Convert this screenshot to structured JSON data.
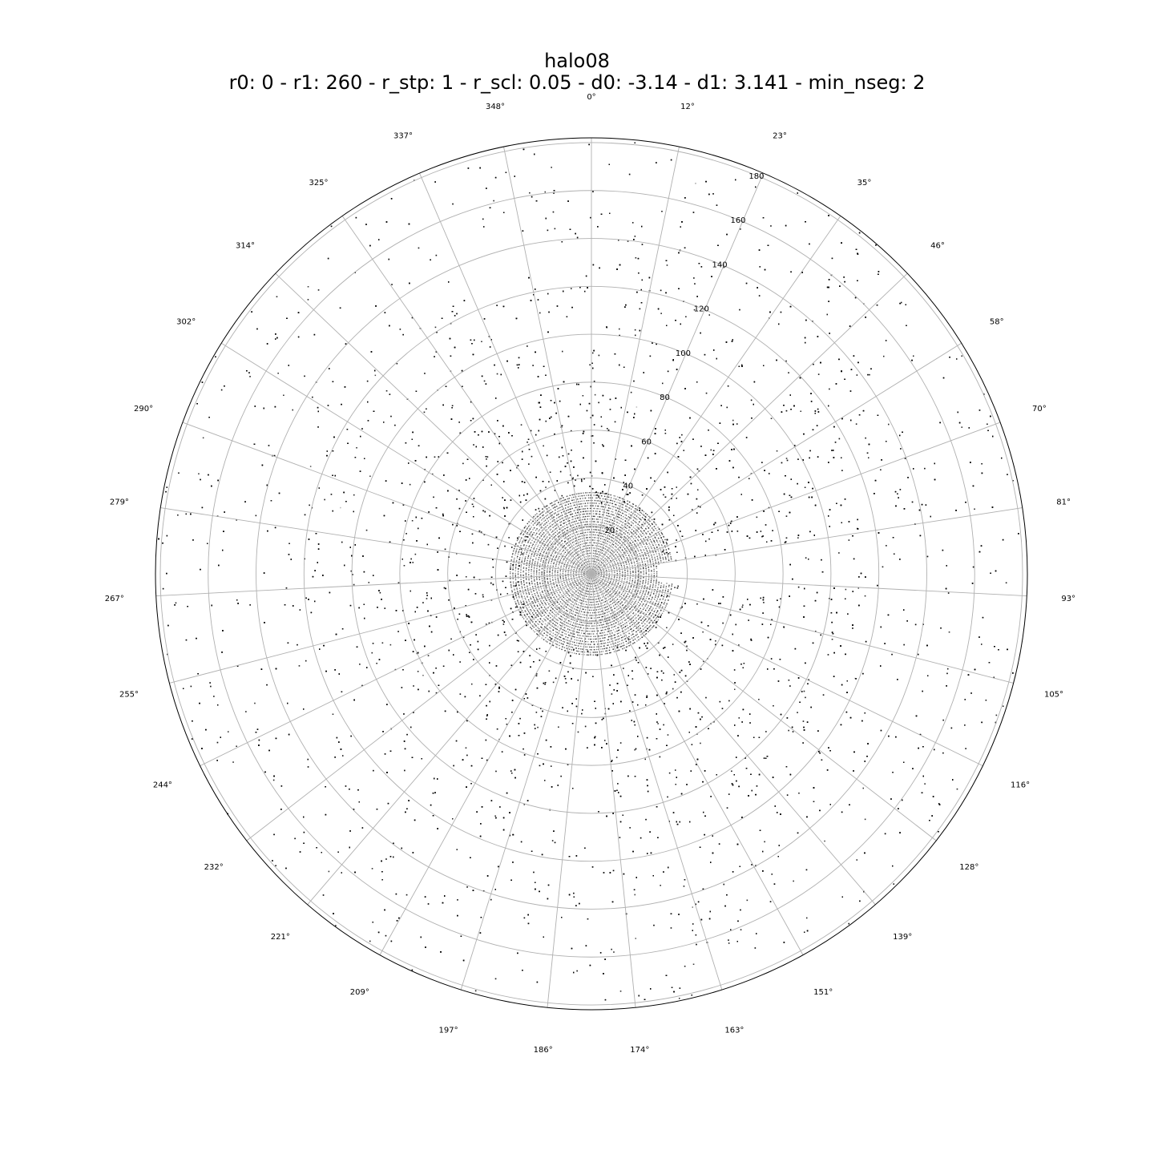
{
  "chart_data": {
    "type": "scatter",
    "projection": "polar",
    "title": "halo08",
    "subtitle": "r0: 0 - r1: 260 - r_stp: 1 - r_scl: 0.05 - d0: -3.14 - d1: 3.141 - min_nseg: 2",
    "theta_zero_location": "top",
    "theta_direction": "clockwise",
    "theta_tick_labels": [
      "0°",
      "12°",
      "23°",
      "35°",
      "46°",
      "58°",
      "70°",
      "81°",
      "93°",
      "105°",
      "116°",
      "128°",
      "139°",
      "151°",
      "163°",
      "174°",
      "186°",
      "197°",
      "209°",
      "221°",
      "232°",
      "244°",
      "255°",
      "267°",
      "279°",
      "290°",
      "302°",
      "314°",
      "325°",
      "337°",
      "348°"
    ],
    "r_tick_labels": [
      "20",
      "40",
      "60",
      "80",
      "100",
      "120",
      "140",
      "160",
      "180"
    ],
    "r_ticks": [
      20,
      40,
      60,
      80,
      100,
      120,
      140,
      160,
      180
    ],
    "rlim": [
      0,
      182
    ],
    "grid": true,
    "marker_color": "#000000",
    "grid_color": "#b0b0b0",
    "points_note_excluded": true,
    "density": {
      "center_dense_radius": 30,
      "empty_wedge_theta_deg": [
        82,
        97
      ],
      "empty_wedge_r": [
        28,
        80
      ]
    }
  }
}
